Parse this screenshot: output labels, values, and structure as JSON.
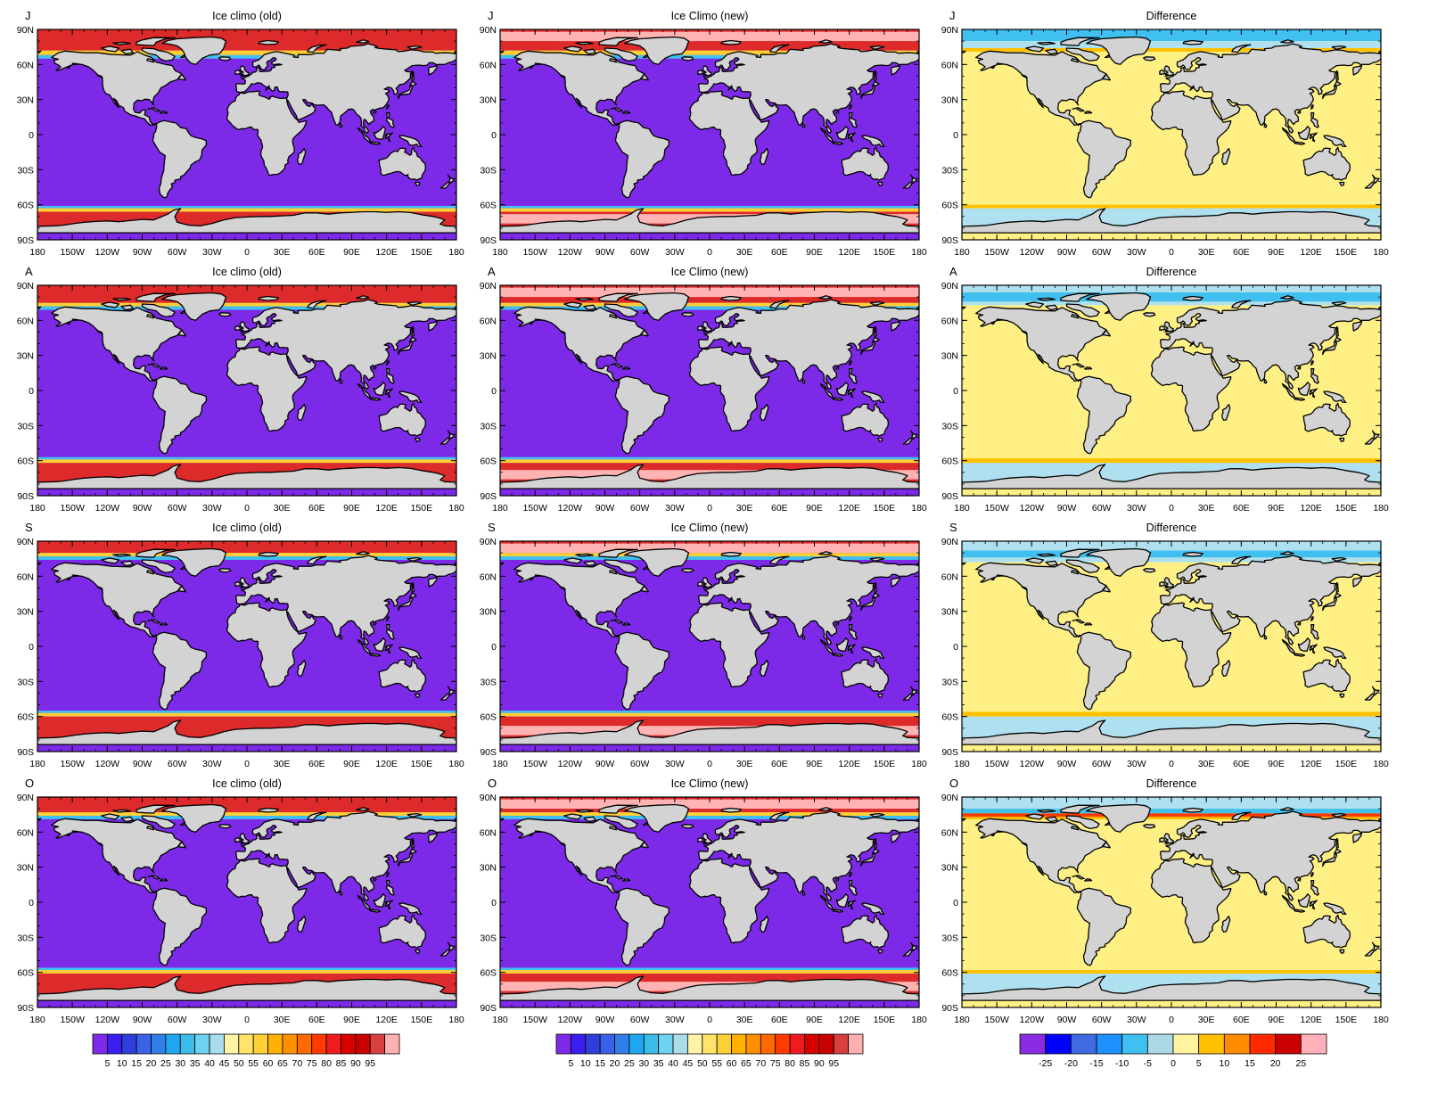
{
  "figure": {
    "rows": [
      "J",
      "A",
      "S",
      "O"
    ],
    "panel_titles": [
      "Ice climo (old)",
      "Ice Climo (new)",
      "Difference"
    ],
    "lat_labels": [
      "90N",
      "60N",
      "30N",
      "0",
      "30S",
      "60S",
      "90S"
    ],
    "lon_labels": [
      "180",
      "150W",
      "120W",
      "90W",
      "60W",
      "30W",
      "0",
      "30E",
      "60E",
      "90E",
      "120E",
      "150E",
      "180"
    ],
    "land_color": "#d3d3d3",
    "colorbar_ice": {
      "colors": [
        "#7d2ae8",
        "#3b1ef0",
        "#2e3fdc",
        "#3a62e6",
        "#2f7fe8",
        "#1fa6f0",
        "#3bbcea",
        "#6fd2f0",
        "#aadcec",
        "#fff3a8",
        "#ffe36a",
        "#ffd035",
        "#ffb000",
        "#ff8f00",
        "#ff6a00",
        "#ff3b00",
        "#ee1c1c",
        "#d90000",
        "#c80000",
        "#d84040",
        "#ffb0b0"
      ],
      "labels": [
        "5",
        "10",
        "15",
        "20",
        "25",
        "30",
        "35",
        "40",
        "45",
        "50",
        "55",
        "60",
        "65",
        "70",
        "75",
        "80",
        "85",
        "90",
        "95"
      ]
    },
    "colorbar_diff": {
      "colors": [
        "#8a2be2",
        "#0000ff",
        "#4169e1",
        "#1e90ff",
        "#40c0f0",
        "#add8e6",
        "#fff3a0",
        "#ffc000",
        "#ff8c00",
        "#ff2a00",
        "#cc0000",
        "#ffb0b8"
      ],
      "labels": [
        "-25",
        "-20",
        "-15",
        "-10",
        "-5",
        "0",
        "5",
        "10",
        "15",
        "20",
        "25"
      ]
    },
    "map_colors": {
      "ocean_ice": "#7d2ae8",
      "ocean_diff": "#fff085",
      "ice_high": "#dd2a2a",
      "ice_pale": "#ffb3b3",
      "ice_edge_blue": "#40c0f0",
      "ice_edge_yellow": "#ffd035",
      "diff_neg": "#aee0f0",
      "diff_neg_strong": "#40c0f0",
      "diff_pos": "#ffc000",
      "diff_pos_strong": "#ff3b00"
    }
  }
}
